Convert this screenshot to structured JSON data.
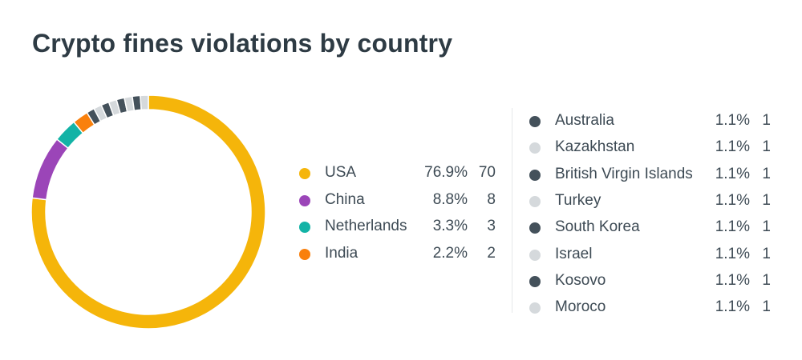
{
  "title": "Crypto fines violations by country",
  "chart_data": {
    "type": "pie",
    "style": "donut",
    "title": "Crypto fines violations by country",
    "slices": [
      {
        "label": "USA",
        "percent": "76.9%",
        "value": 70,
        "color": "#f5b50a"
      },
      {
        "label": "China",
        "percent": "8.8%",
        "value": 8,
        "color": "#9b45b8"
      },
      {
        "label": "Netherlands",
        "percent": "3.3%",
        "value": 3,
        "color": "#13b3a6"
      },
      {
        "label": "India",
        "percent": "2.2%",
        "value": 2,
        "color": "#f9800d"
      },
      {
        "label": "Australia",
        "percent": "1.1%",
        "value": 1,
        "color": "#44515b"
      },
      {
        "label": "Kazakhstan",
        "percent": "1.1%",
        "value": 1,
        "color": "#d5d9dc"
      },
      {
        "label": "British Virgin Islands",
        "percent": "1.1%",
        "value": 1,
        "color": "#44515b"
      },
      {
        "label": "Turkey",
        "percent": "1.1%",
        "value": 1,
        "color": "#d5d9dc"
      },
      {
        "label": "South Korea",
        "percent": "1.1%",
        "value": 1,
        "color": "#44515b"
      },
      {
        "label": "Israel",
        "percent": "1.1%",
        "value": 1,
        "color": "#d5d9dc"
      },
      {
        "label": "Kosovo",
        "percent": "1.1%",
        "value": 1,
        "color": "#44515b"
      },
      {
        "label": "Moroco",
        "percent": "1.1%",
        "value": 1,
        "color": "#d5d9dc"
      }
    ],
    "legend_left_count": 4
  }
}
